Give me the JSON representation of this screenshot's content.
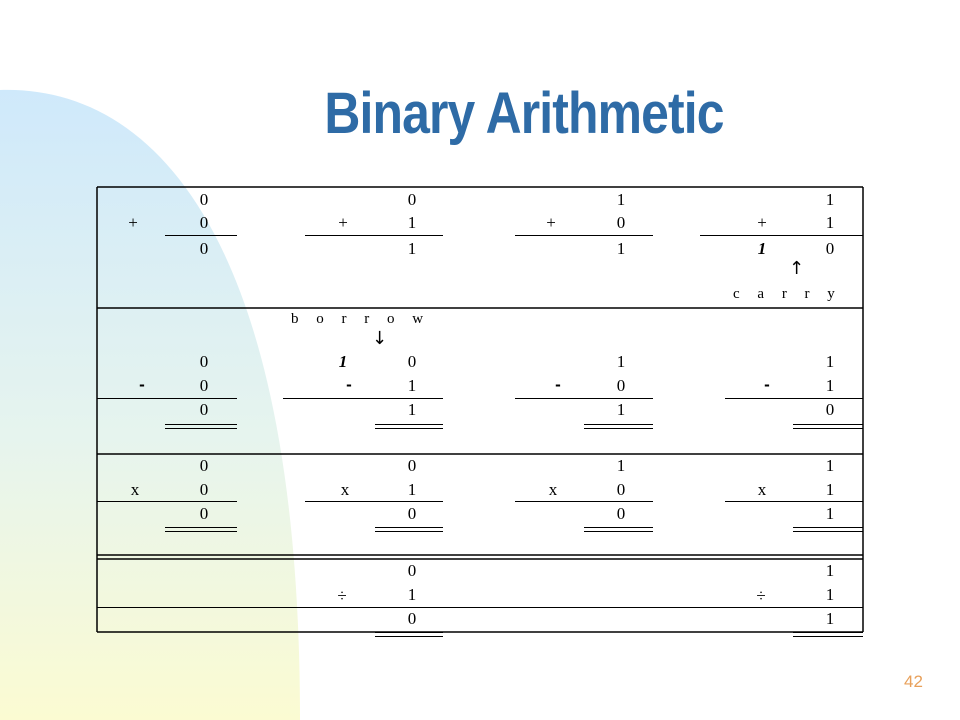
{
  "slide": {
    "title": "Binary Arithmetic",
    "page_number": "42"
  },
  "addition": {
    "operator": "+",
    "columns": [
      {
        "top": "0",
        "bottom": "0",
        "result": "0"
      },
      {
        "top": "0",
        "bottom": "1",
        "result": "1"
      },
      {
        "top": "1",
        "bottom": "0",
        "result": "1"
      },
      {
        "top": "1",
        "bottom": "1",
        "carry_digit": "1",
        "result": "0"
      }
    ],
    "carry_label": "c a r r y",
    "carry_arrow": "↑"
  },
  "subtraction": {
    "operator": "-",
    "borrow_label": "b o r r o w",
    "borrow_arrow": "↓",
    "columns": [
      {
        "top": "0",
        "bottom": "0",
        "result": "0"
      },
      {
        "borrow_digit": "1",
        "top": "0",
        "bottom": "1",
        "result": "1"
      },
      {
        "top": "1",
        "bottom": "0",
        "result": "1"
      },
      {
        "top": "1",
        "bottom": "1",
        "result": "0"
      }
    ]
  },
  "multiplication": {
    "operator": "x",
    "columns": [
      {
        "top": "0",
        "bottom": "0",
        "result": "0"
      },
      {
        "top": "0",
        "bottom": "1",
        "result": "0"
      },
      {
        "top": "1",
        "bottom": "0",
        "result": "0"
      },
      {
        "top": "1",
        "bottom": "1",
        "result": "1"
      }
    ]
  },
  "division": {
    "operator": "÷",
    "columns": [
      {
        "top": "0",
        "bottom": "1",
        "result": "0"
      },
      {
        "top": "1",
        "bottom": "1",
        "result": "1"
      }
    ]
  }
}
